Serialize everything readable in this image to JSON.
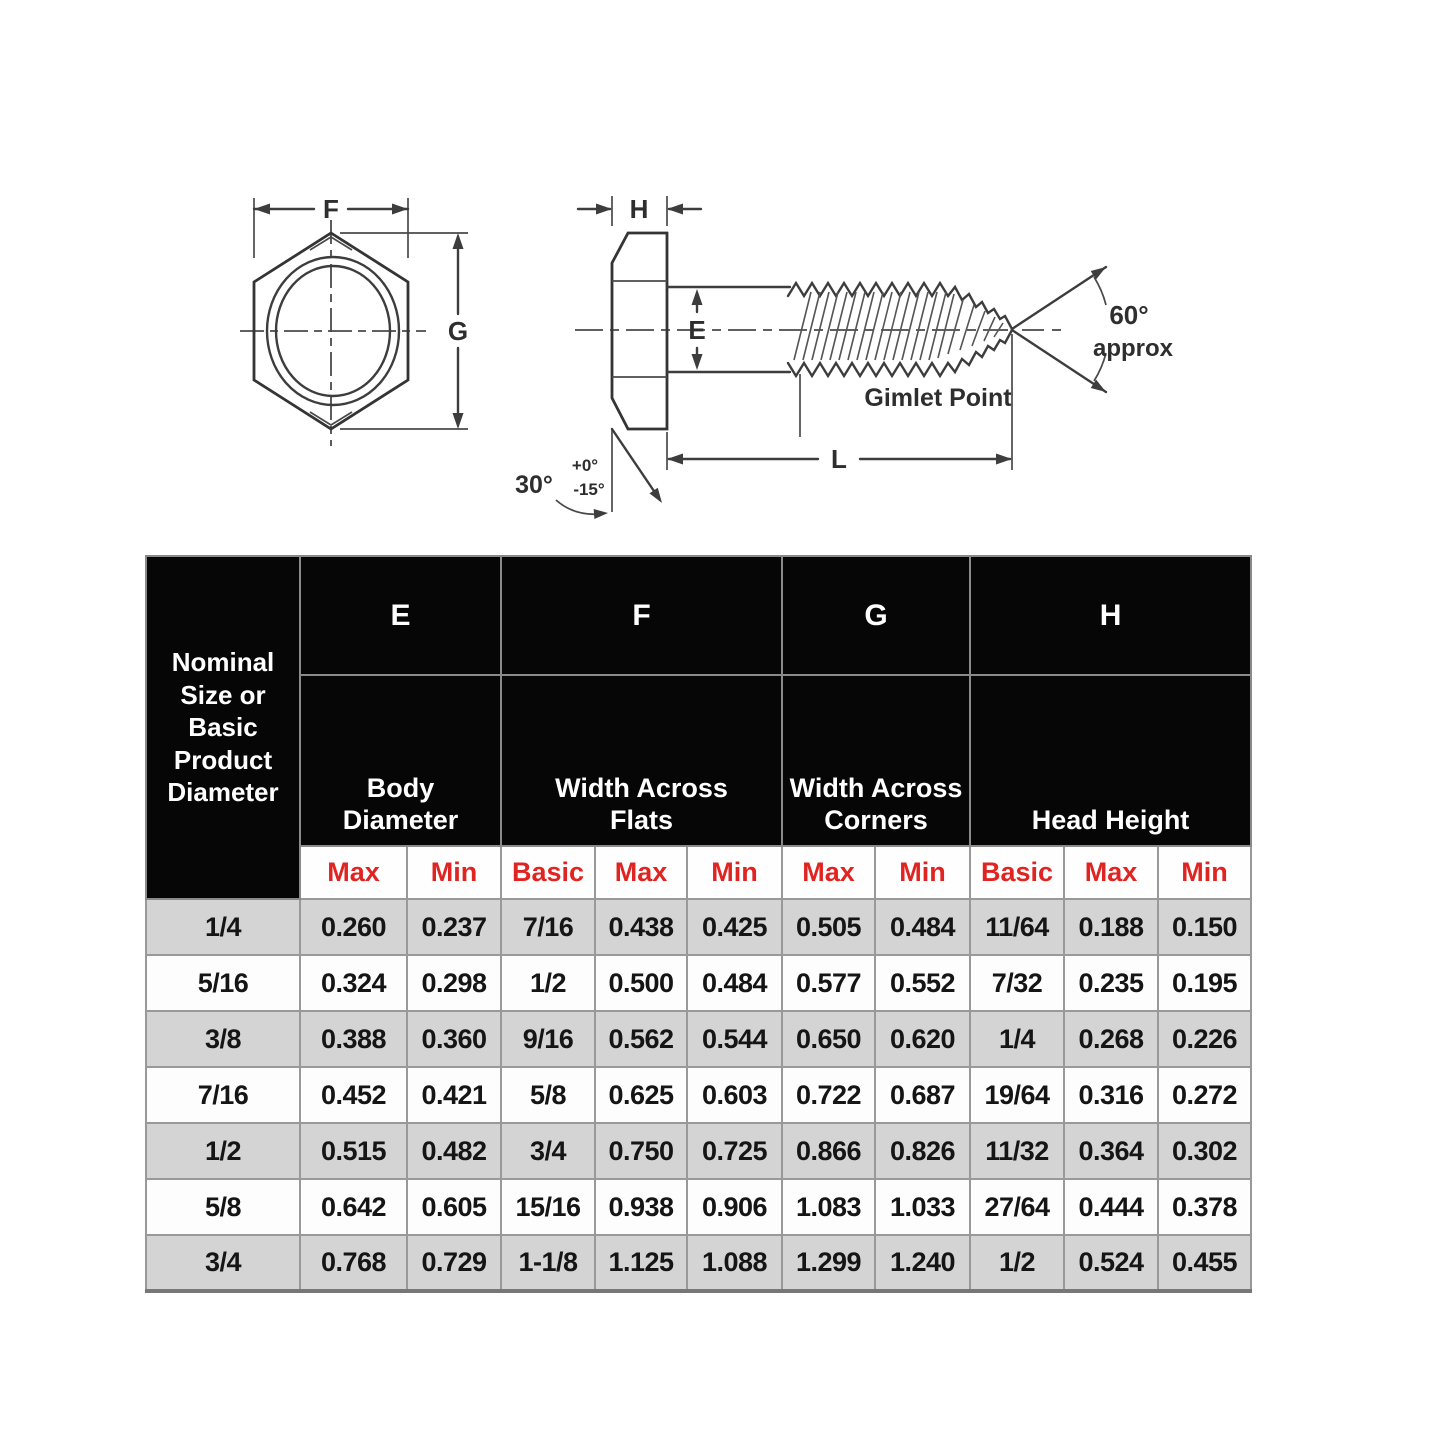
{
  "drawing": {
    "labels": {
      "f": "F",
      "g": "G",
      "h": "H",
      "e": "E",
      "l": "L",
      "angle60": "60°",
      "approx": "approx",
      "gimlet": "Gimlet Point",
      "angle30": "30°",
      "tol_plus": "+0°",
      "tol_minus": "-15°"
    },
    "line_color": "#3d3d3d"
  },
  "table": {
    "corner_header": "Nominal Size or Basic Product Diameter",
    "groups": [
      {
        "letter": "E",
        "label": "Body Diameter",
        "subcols": [
          "Max",
          "Min"
        ]
      },
      {
        "letter": "F",
        "label": "Width Across Flats",
        "subcols": [
          "Basic",
          "Max",
          "Min"
        ]
      },
      {
        "letter": "G",
        "label": "Width Across Corners",
        "subcols": [
          "Max",
          "Min"
        ]
      },
      {
        "letter": "H",
        "label": "Head Height",
        "subcols": [
          "Basic",
          "Max",
          "Min"
        ]
      }
    ],
    "rows": [
      {
        "cells": [
          "1/4",
          "0.260",
          "0.237",
          "7/16",
          "0.438",
          "0.425",
          "0.505",
          "0.484",
          "11/64",
          "0.188",
          "0.150"
        ]
      },
      {
        "cells": [
          "5/16",
          "0.324",
          "0.298",
          "1/2",
          "0.500",
          "0.484",
          "0.577",
          "0.552",
          "7/32",
          "0.235",
          "0.195"
        ]
      },
      {
        "cells": [
          "3/8",
          "0.388",
          "0.360",
          "9/16",
          "0.562",
          "0.544",
          "0.650",
          "0.620",
          "1/4",
          "0.268",
          "0.226"
        ]
      },
      {
        "cells": [
          "7/16",
          "0.452",
          "0.421",
          "5/8",
          "0.625",
          "0.603",
          "0.722",
          "0.687",
          "19/64",
          "0.316",
          "0.272"
        ]
      },
      {
        "cells": [
          "1/2",
          "0.515",
          "0.482",
          "3/4",
          "0.750",
          "0.725",
          "0.866",
          "0.826",
          "11/32",
          "0.364",
          "0.302"
        ]
      },
      {
        "cells": [
          "5/8",
          "0.642",
          "0.605",
          "15/16",
          "0.938",
          "0.906",
          "1.083",
          "1.033",
          "27/64",
          "0.444",
          "0.378"
        ]
      },
      {
        "cells": [
          "3/4",
          "0.768",
          "0.729",
          "1-1/8",
          "1.125",
          "1.088",
          "1.299",
          "1.240",
          "1/2",
          "0.524",
          "0.455"
        ]
      }
    ],
    "colors": {
      "header_bg": "#060606",
      "header_text": "#ffffff",
      "subheader_text": "#e02421",
      "row_alt_bg": "#d4d4d4",
      "row_bg": "#fdfdfd",
      "border": "#999999"
    }
  }
}
